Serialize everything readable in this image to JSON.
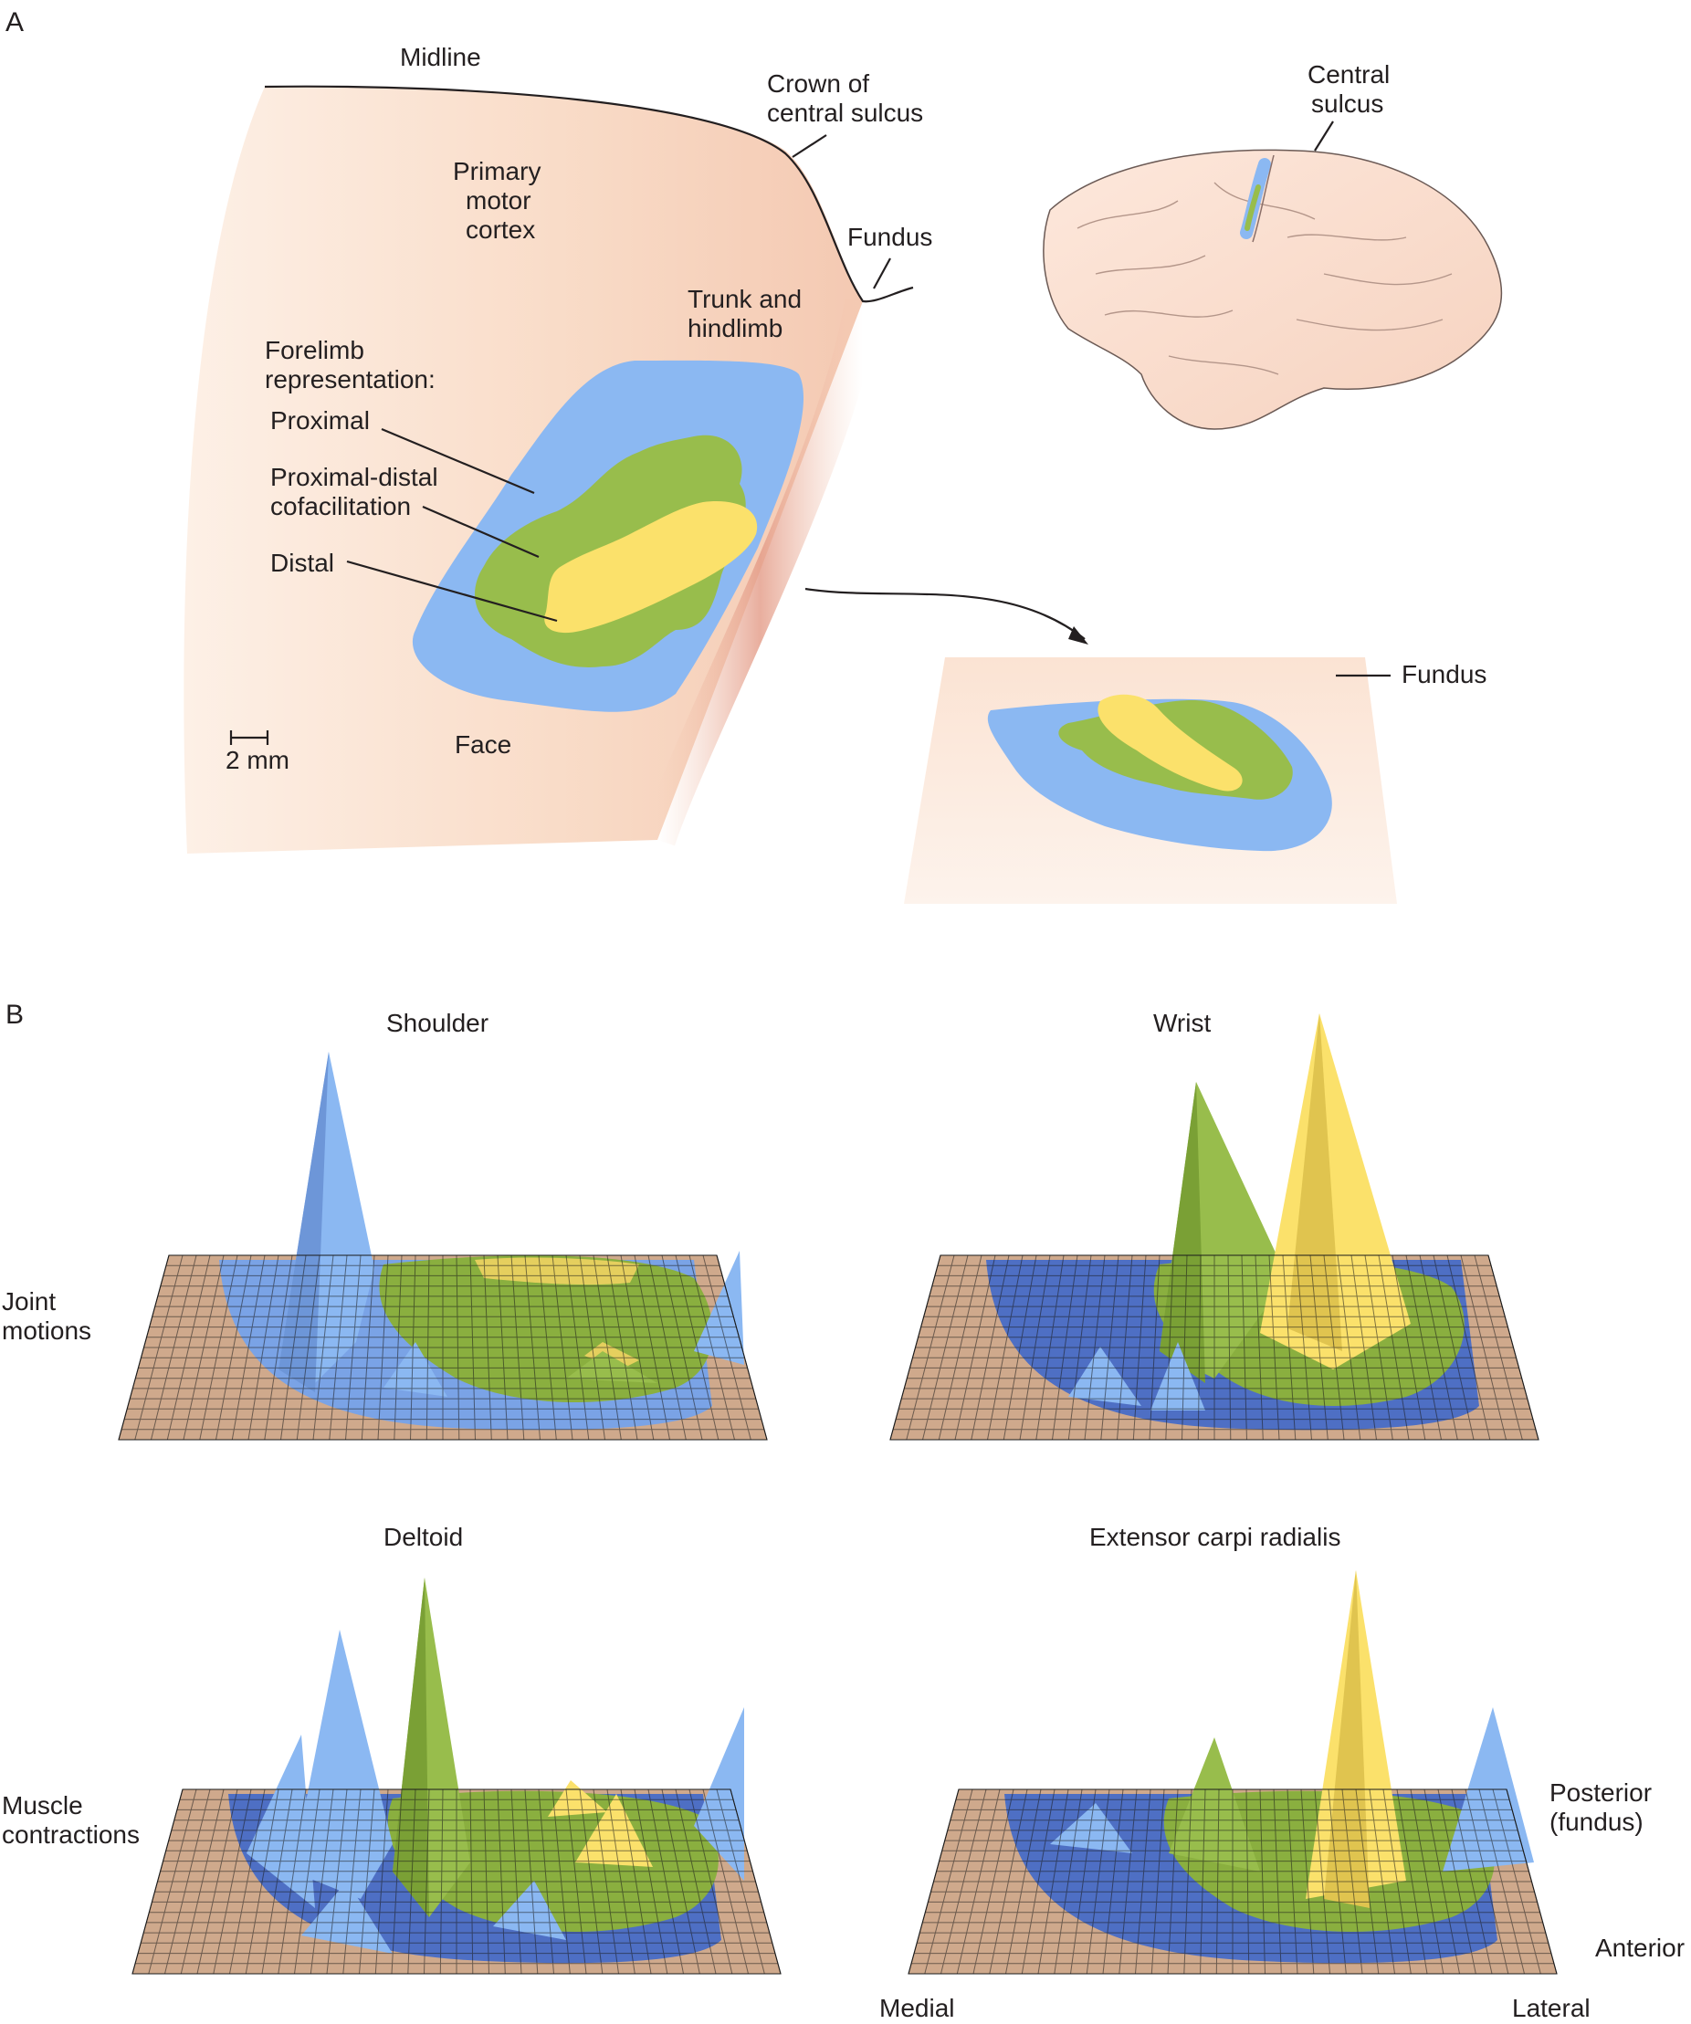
{
  "panel_a": {
    "letter": "A",
    "labels": {
      "midline": "Midline",
      "crown": [
        "Crown of",
        "central sulcus"
      ],
      "central_sulcus": [
        "Central",
        "sulcus"
      ],
      "primary_motor": [
        "Primary",
        "motor",
        "cortex"
      ],
      "fundus": "Fundus",
      "trunk": [
        "Trunk and",
        "hindlimb"
      ],
      "forelimb": [
        "Forelimb",
        "representation:"
      ],
      "proximal": "Proximal",
      "cofacilitation": [
        "Proximal-distal",
        "cofacilitation"
      ],
      "distal": "Distal",
      "scale": "2 mm",
      "face": "Face",
      "fundus_inset": "Fundus"
    }
  },
  "panel_b": {
    "letter": "B",
    "row_labels": {
      "joint": [
        "Joint",
        "motions"
      ],
      "muscle": [
        "Muscle",
        "contractions"
      ]
    },
    "plots": [
      {
        "title": "Shoulder"
      },
      {
        "title": "Wrist"
      },
      {
        "title": "Deltoid"
      },
      {
        "title": "Extensor carpi radialis"
      }
    ],
    "axis_labels": {
      "posterior": [
        "Posterior",
        "(fundus)"
      ],
      "anterior": "Anterior",
      "medial": "Medial",
      "lateral": "Lateral"
    }
  },
  "colors": {
    "cortex": "#f9dcc8",
    "proximal": "#8bb8f2",
    "cofacilitation": "#98bd4c",
    "distal": "#fbe16b",
    "floor": "#cfa98c",
    "fundus_band": "#e9a48e"
  }
}
